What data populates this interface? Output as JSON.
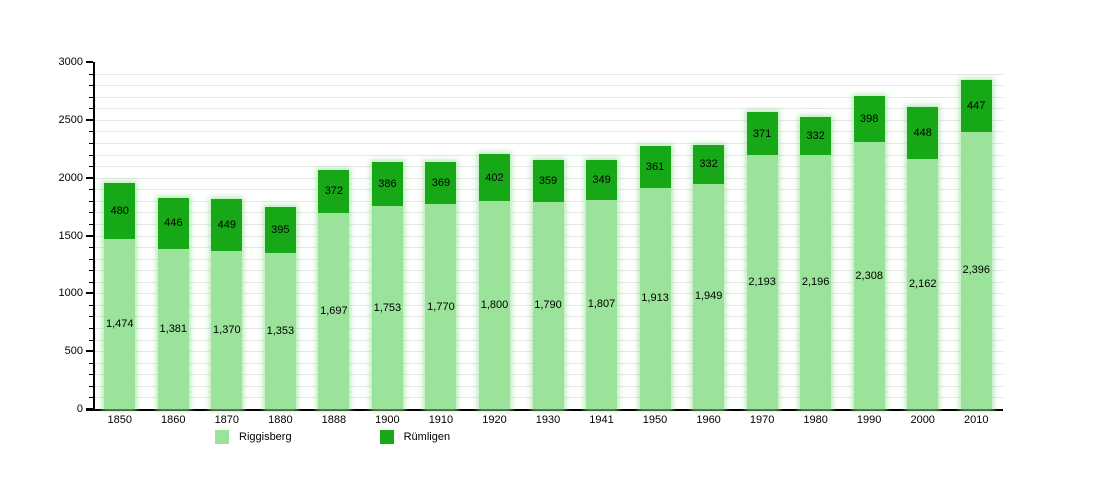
{
  "chart_data": {
    "type": "bar",
    "stacked": true,
    "title": "",
    "xlabel": "",
    "ylabel": "",
    "categories": [
      "1850",
      "1860",
      "1870",
      "1880",
      "1888",
      "1900",
      "1910",
      "1920",
      "1930",
      "1941",
      "1950",
      "1960",
      "1970",
      "1980",
      "1990",
      "2000",
      "2010"
    ],
    "series": [
      {
        "name": "Riggisberg",
        "color": "#9BE29B",
        "values": [
          1474,
          1381,
          1370,
          1353,
          1697,
          1753,
          1770,
          1800,
          1790,
          1807,
          1913,
          1949,
          2193,
          2196,
          2308,
          2162,
          2396
        ]
      },
      {
        "name": "Rümligen",
        "color": "#16A816",
        "values": [
          480,
          446,
          449,
          395,
          372,
          386,
          369,
          402,
          359,
          349,
          361,
          332,
          371,
          332,
          398,
          448,
          447
        ]
      }
    ],
    "ylim": [
      0,
      3000
    ],
    "y_major_ticks": [
      0,
      500,
      1000,
      1500,
      2000,
      2500,
      3000
    ],
    "y_minor_interval": 100,
    "grid": true,
    "legend_position": "bottom",
    "value_labels": "inside-center",
    "value_label_format": "thousands-comma"
  },
  "legend": {
    "items": [
      {
        "label": "Riggisberg",
        "color": "#9BE29B"
      },
      {
        "label": "Rümligen",
        "color": "#16A816"
      }
    ]
  }
}
